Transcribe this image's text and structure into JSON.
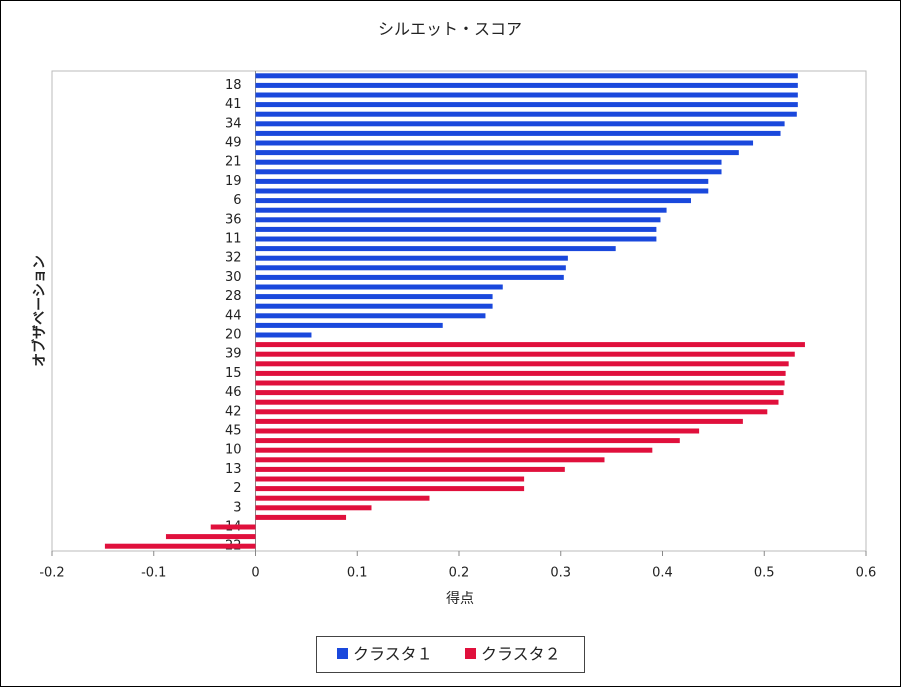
{
  "chart_data": {
    "type": "barh",
    "title": "シルエット・スコア",
    "x_label": "得点",
    "y_label": "オブザベーション",
    "categories": [
      null,
      "18",
      null,
      "41",
      null,
      "34",
      null,
      "49",
      null,
      "21",
      null,
      "19",
      null,
      "6",
      null,
      "36",
      null,
      "11",
      null,
      "32",
      null,
      "30",
      null,
      "28",
      null,
      "44",
      null,
      "20",
      null,
      "39",
      null,
      "15",
      null,
      "46",
      null,
      "42",
      null,
      "45",
      null,
      "10",
      null,
      "13",
      null,
      "2",
      null,
      "3",
      null,
      "14",
      null,
      "22"
    ],
    "series": [
      {
        "name": "クラスタ１",
        "color": "#1a48dc",
        "values": [
          0.533,
          0.533,
          0.533,
          0.533,
          0.532,
          0.52,
          0.516,
          0.489,
          0.475,
          0.458,
          0.458,
          0.445,
          0.445,
          0.428,
          0.404,
          0.398,
          0.394,
          0.394,
          0.354,
          0.307,
          0.305,
          0.303,
          0.243,
          0.233,
          0.233,
          0.226,
          0.184,
          0.055,
          null,
          null,
          null,
          null,
          null,
          null,
          null,
          null,
          null,
          null,
          null,
          null,
          null,
          null,
          null,
          null,
          null,
          null,
          null,
          null,
          null,
          null
        ]
      },
      {
        "name": "クラスタ２",
        "color": "#e0103c",
        "values": [
          null,
          null,
          null,
          null,
          null,
          null,
          null,
          null,
          null,
          null,
          null,
          null,
          null,
          null,
          null,
          null,
          null,
          null,
          null,
          null,
          null,
          null,
          null,
          null,
          null,
          null,
          null,
          null,
          0.54,
          0.53,
          0.524,
          0.521,
          0.52,
          0.519,
          0.514,
          0.503,
          0.479,
          0.436,
          0.417,
          0.39,
          0.343,
          0.304,
          0.264,
          0.264,
          0.171,
          0.114,
          0.089,
          -0.044,
          -0.088,
          -0.148
        ]
      }
    ],
    "xlim": [
      -0.2,
      0.6
    ],
    "xticks": [
      -0.2,
      -0.1,
      0,
      0.1,
      0.2,
      0.3,
      0.4,
      0.5,
      0.6
    ],
    "grid": false,
    "legend": "bottom"
  }
}
